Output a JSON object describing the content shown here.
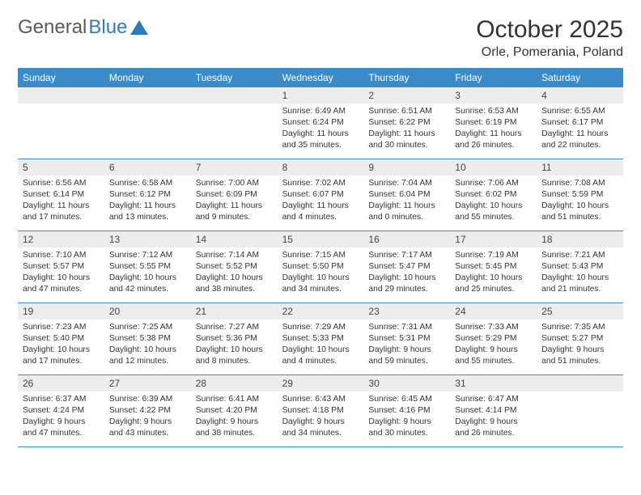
{
  "logo": {
    "text_gray": "General",
    "text_blue": "Blue"
  },
  "header": {
    "month_title": "October 2025",
    "location": "Orle, Pomerania, Poland"
  },
  "colors": {
    "header_bg": "#3b8bc9",
    "header_text": "#ffffff",
    "daynum_bg": "#ededed",
    "border": "#3b8bc9",
    "text": "#333333",
    "logo_gray": "#5a5a5a",
    "logo_blue": "#2f7bbf"
  },
  "day_labels": [
    "Sunday",
    "Monday",
    "Tuesday",
    "Wednesday",
    "Thursday",
    "Friday",
    "Saturday"
  ],
  "weeks": [
    [
      {
        "empty": true
      },
      {
        "empty": true
      },
      {
        "empty": true
      },
      {
        "day": "1",
        "sunrise": "Sunrise: 6:49 AM",
        "sunset": "Sunset: 6:24 PM",
        "daylight1": "Daylight: 11 hours",
        "daylight2": "and 35 minutes."
      },
      {
        "day": "2",
        "sunrise": "Sunrise: 6:51 AM",
        "sunset": "Sunset: 6:22 PM",
        "daylight1": "Daylight: 11 hours",
        "daylight2": "and 30 minutes."
      },
      {
        "day": "3",
        "sunrise": "Sunrise: 6:53 AM",
        "sunset": "Sunset: 6:19 PM",
        "daylight1": "Daylight: 11 hours",
        "daylight2": "and 26 minutes."
      },
      {
        "day": "4",
        "sunrise": "Sunrise: 6:55 AM",
        "sunset": "Sunset: 6:17 PM",
        "daylight1": "Daylight: 11 hours",
        "daylight2": "and 22 minutes."
      }
    ],
    [
      {
        "day": "5",
        "sunrise": "Sunrise: 6:56 AM",
        "sunset": "Sunset: 6:14 PM",
        "daylight1": "Daylight: 11 hours",
        "daylight2": "and 17 minutes."
      },
      {
        "day": "6",
        "sunrise": "Sunrise: 6:58 AM",
        "sunset": "Sunset: 6:12 PM",
        "daylight1": "Daylight: 11 hours",
        "daylight2": "and 13 minutes."
      },
      {
        "day": "7",
        "sunrise": "Sunrise: 7:00 AM",
        "sunset": "Sunset: 6:09 PM",
        "daylight1": "Daylight: 11 hours",
        "daylight2": "and 9 minutes."
      },
      {
        "day": "8",
        "sunrise": "Sunrise: 7:02 AM",
        "sunset": "Sunset: 6:07 PM",
        "daylight1": "Daylight: 11 hours",
        "daylight2": "and 4 minutes."
      },
      {
        "day": "9",
        "sunrise": "Sunrise: 7:04 AM",
        "sunset": "Sunset: 6:04 PM",
        "daylight1": "Daylight: 11 hours",
        "daylight2": "and 0 minutes."
      },
      {
        "day": "10",
        "sunrise": "Sunrise: 7:06 AM",
        "sunset": "Sunset: 6:02 PM",
        "daylight1": "Daylight: 10 hours",
        "daylight2": "and 55 minutes."
      },
      {
        "day": "11",
        "sunrise": "Sunrise: 7:08 AM",
        "sunset": "Sunset: 5:59 PM",
        "daylight1": "Daylight: 10 hours",
        "daylight2": "and 51 minutes."
      }
    ],
    [
      {
        "day": "12",
        "sunrise": "Sunrise: 7:10 AM",
        "sunset": "Sunset: 5:57 PM",
        "daylight1": "Daylight: 10 hours",
        "daylight2": "and 47 minutes."
      },
      {
        "day": "13",
        "sunrise": "Sunrise: 7:12 AM",
        "sunset": "Sunset: 5:55 PM",
        "daylight1": "Daylight: 10 hours",
        "daylight2": "and 42 minutes."
      },
      {
        "day": "14",
        "sunrise": "Sunrise: 7:14 AM",
        "sunset": "Sunset: 5:52 PM",
        "daylight1": "Daylight: 10 hours",
        "daylight2": "and 38 minutes."
      },
      {
        "day": "15",
        "sunrise": "Sunrise: 7:15 AM",
        "sunset": "Sunset: 5:50 PM",
        "daylight1": "Daylight: 10 hours",
        "daylight2": "and 34 minutes."
      },
      {
        "day": "16",
        "sunrise": "Sunrise: 7:17 AM",
        "sunset": "Sunset: 5:47 PM",
        "daylight1": "Daylight: 10 hours",
        "daylight2": "and 29 minutes."
      },
      {
        "day": "17",
        "sunrise": "Sunrise: 7:19 AM",
        "sunset": "Sunset: 5:45 PM",
        "daylight1": "Daylight: 10 hours",
        "daylight2": "and 25 minutes."
      },
      {
        "day": "18",
        "sunrise": "Sunrise: 7:21 AM",
        "sunset": "Sunset: 5:43 PM",
        "daylight1": "Daylight: 10 hours",
        "daylight2": "and 21 minutes."
      }
    ],
    [
      {
        "day": "19",
        "sunrise": "Sunrise: 7:23 AM",
        "sunset": "Sunset: 5:40 PM",
        "daylight1": "Daylight: 10 hours",
        "daylight2": "and 17 minutes."
      },
      {
        "day": "20",
        "sunrise": "Sunrise: 7:25 AM",
        "sunset": "Sunset: 5:38 PM",
        "daylight1": "Daylight: 10 hours",
        "daylight2": "and 12 minutes."
      },
      {
        "day": "21",
        "sunrise": "Sunrise: 7:27 AM",
        "sunset": "Sunset: 5:36 PM",
        "daylight1": "Daylight: 10 hours",
        "daylight2": "and 8 minutes."
      },
      {
        "day": "22",
        "sunrise": "Sunrise: 7:29 AM",
        "sunset": "Sunset: 5:33 PM",
        "daylight1": "Daylight: 10 hours",
        "daylight2": "and 4 minutes."
      },
      {
        "day": "23",
        "sunrise": "Sunrise: 7:31 AM",
        "sunset": "Sunset: 5:31 PM",
        "daylight1": "Daylight: 9 hours",
        "daylight2": "and 59 minutes."
      },
      {
        "day": "24",
        "sunrise": "Sunrise: 7:33 AM",
        "sunset": "Sunset: 5:29 PM",
        "daylight1": "Daylight: 9 hours",
        "daylight2": "and 55 minutes."
      },
      {
        "day": "25",
        "sunrise": "Sunrise: 7:35 AM",
        "sunset": "Sunset: 5:27 PM",
        "daylight1": "Daylight: 9 hours",
        "daylight2": "and 51 minutes."
      }
    ],
    [
      {
        "day": "26",
        "sunrise": "Sunrise: 6:37 AM",
        "sunset": "Sunset: 4:24 PM",
        "daylight1": "Daylight: 9 hours",
        "daylight2": "and 47 minutes."
      },
      {
        "day": "27",
        "sunrise": "Sunrise: 6:39 AM",
        "sunset": "Sunset: 4:22 PM",
        "daylight1": "Daylight: 9 hours",
        "daylight2": "and 43 minutes."
      },
      {
        "day": "28",
        "sunrise": "Sunrise: 6:41 AM",
        "sunset": "Sunset: 4:20 PM",
        "daylight1": "Daylight: 9 hours",
        "daylight2": "and 38 minutes."
      },
      {
        "day": "29",
        "sunrise": "Sunrise: 6:43 AM",
        "sunset": "Sunset: 4:18 PM",
        "daylight1": "Daylight: 9 hours",
        "daylight2": "and 34 minutes."
      },
      {
        "day": "30",
        "sunrise": "Sunrise: 6:45 AM",
        "sunset": "Sunset: 4:16 PM",
        "daylight1": "Daylight: 9 hours",
        "daylight2": "and 30 minutes."
      },
      {
        "day": "31",
        "sunrise": "Sunrise: 6:47 AM",
        "sunset": "Sunset: 4:14 PM",
        "daylight1": "Daylight: 9 hours",
        "daylight2": "and 26 minutes."
      },
      {
        "empty": true
      }
    ]
  ]
}
